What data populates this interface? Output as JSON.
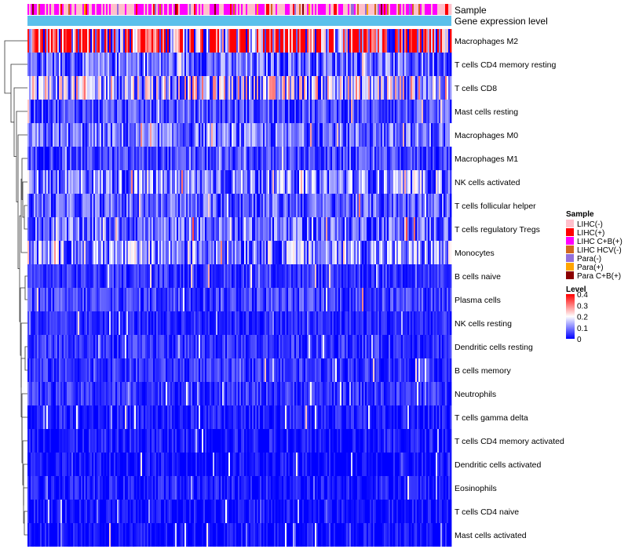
{
  "chart_data": {
    "type": "heatmap",
    "title": "",
    "annotation_tracks": [
      "Sample",
      "Gene expression level"
    ],
    "rows": [
      "Macrophages M2",
      "T cells CD4 memory resting",
      "T cells CD8",
      "Mast cells resting",
      "Macrophages M0",
      "Macrophages M1",
      "NK cells activated",
      "T cells follicular helper",
      "T cells regulatory  Tregs",
      "Monocytes",
      "B cells naive",
      "Plasma cells",
      "NK cells resting",
      "Dendritic cells resting",
      "B cells memory",
      "Neutrophils",
      "T cells gamma delta",
      "T cells CD4 memory activated",
      "Dendritic cells activated",
      "Eosinophils",
      "T cells CD4 naive",
      "Mast cells activated"
    ],
    "row_mean_level": [
      0.3,
      0.08,
      0.15,
      0.06,
      0.08,
      0.05,
      0.1,
      0.07,
      0.08,
      0.11,
      0.04,
      0.05,
      0.03,
      0.04,
      0.04,
      0.04,
      0.02,
      0.02,
      0.01,
      0.02,
      0.01,
      0.01
    ],
    "sample_legend": {
      "title": "Sample",
      "items": [
        {
          "label": "LIHC(-)",
          "color": "#ffc0cb"
        },
        {
          "label": "LIHC(+)",
          "color": "#ff0000"
        },
        {
          "label": "LIHC C+B(+)",
          "color": "#ff00ff"
        },
        {
          "label": "LIHC HCV(-)",
          "color": "#d2691e"
        },
        {
          "label": "Para(-)",
          "color": "#9370db"
        },
        {
          "label": "Para(+)",
          "color": "#ffa500"
        },
        {
          "label": "Para C+B(+)",
          "color": "#8b0000"
        }
      ]
    },
    "level_legend": {
      "title": "Level",
      "ticks": [
        "0.4",
        "0.3",
        "0.2",
        "0.1",
        "0"
      ],
      "tick_values": [
        0.4,
        0.3,
        0.2,
        0.1,
        0
      ],
      "range": [
        0,
        0.4
      ],
      "colors": {
        "low": "#0000ff",
        "mid": "#ffffff",
        "high": "#ff0000"
      }
    },
    "gene_expression_color": "#5bc0eb"
  }
}
